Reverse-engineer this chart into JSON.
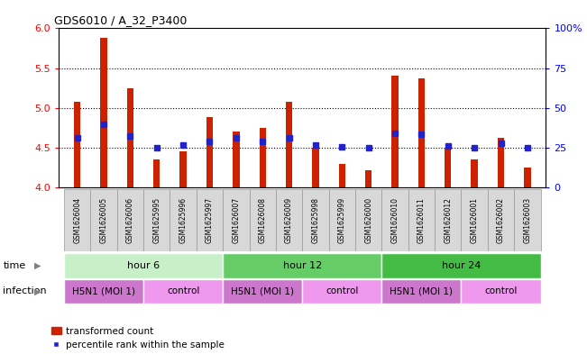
{
  "title": "GDS6010 / A_32_P3400",
  "samples": [
    "GSM1626004",
    "GSM1626005",
    "GSM1626006",
    "GSM1625995",
    "GSM1625996",
    "GSM1625997",
    "GSM1626007",
    "GSM1626008",
    "GSM1626009",
    "GSM1625998",
    "GSM1625999",
    "GSM1626000",
    "GSM1626010",
    "GSM1626011",
    "GSM1626012",
    "GSM1626001",
    "GSM1626002",
    "GSM1626003"
  ],
  "red_values": [
    5.08,
    5.88,
    5.25,
    4.35,
    4.45,
    4.88,
    4.7,
    4.75,
    5.08,
    4.5,
    4.3,
    4.22,
    5.4,
    5.37,
    4.5,
    4.35,
    4.62,
    4.25
  ],
  "blue_values": [
    4.62,
    4.8,
    4.65,
    4.5,
    4.53,
    4.58,
    4.62,
    4.58,
    4.63,
    4.54,
    4.51,
    4.5,
    4.68,
    4.67,
    4.52,
    4.5,
    4.56,
    4.5
  ],
  "ylim": [
    4.0,
    6.0
  ],
  "y_ticks": [
    4.0,
    4.5,
    5.0,
    5.5,
    6.0
  ],
  "y_ticks_right": [
    0,
    25,
    50,
    75,
    100
  ],
  "dotted_lines": [
    4.5,
    5.0,
    5.5
  ],
  "time_groups": [
    {
      "label": "hour 6",
      "start": 0,
      "end": 6,
      "color": "#c8f0c8"
    },
    {
      "label": "hour 12",
      "start": 6,
      "end": 12,
      "color": "#66cc66"
    },
    {
      "label": "hour 24",
      "start": 12,
      "end": 18,
      "color": "#44bb44"
    }
  ],
  "infection_groups": [
    {
      "label": "H5N1 (MOI 1)",
      "start": 0,
      "end": 3,
      "color": "#cc77cc"
    },
    {
      "label": "control",
      "start": 3,
      "end": 6,
      "color": "#ee99ee"
    },
    {
      "label": "H5N1 (MOI 1)",
      "start": 6,
      "end": 9,
      "color": "#cc77cc"
    },
    {
      "label": "control",
      "start": 9,
      "end": 12,
      "color": "#ee99ee"
    },
    {
      "label": "H5N1 (MOI 1)",
      "start": 12,
      "end": 15,
      "color": "#cc77cc"
    },
    {
      "label": "control",
      "start": 15,
      "end": 18,
      "color": "#ee99ee"
    }
  ],
  "bar_color": "#cc2200",
  "dot_color": "#2222cc",
  "bar_bottom": 4.0,
  "bar_width": 0.25,
  "bg_color": "#ffffff",
  "legend_red": "transformed count",
  "legend_blue": "percentile rank within the sample",
  "time_label": "time",
  "infection_label": "infection"
}
